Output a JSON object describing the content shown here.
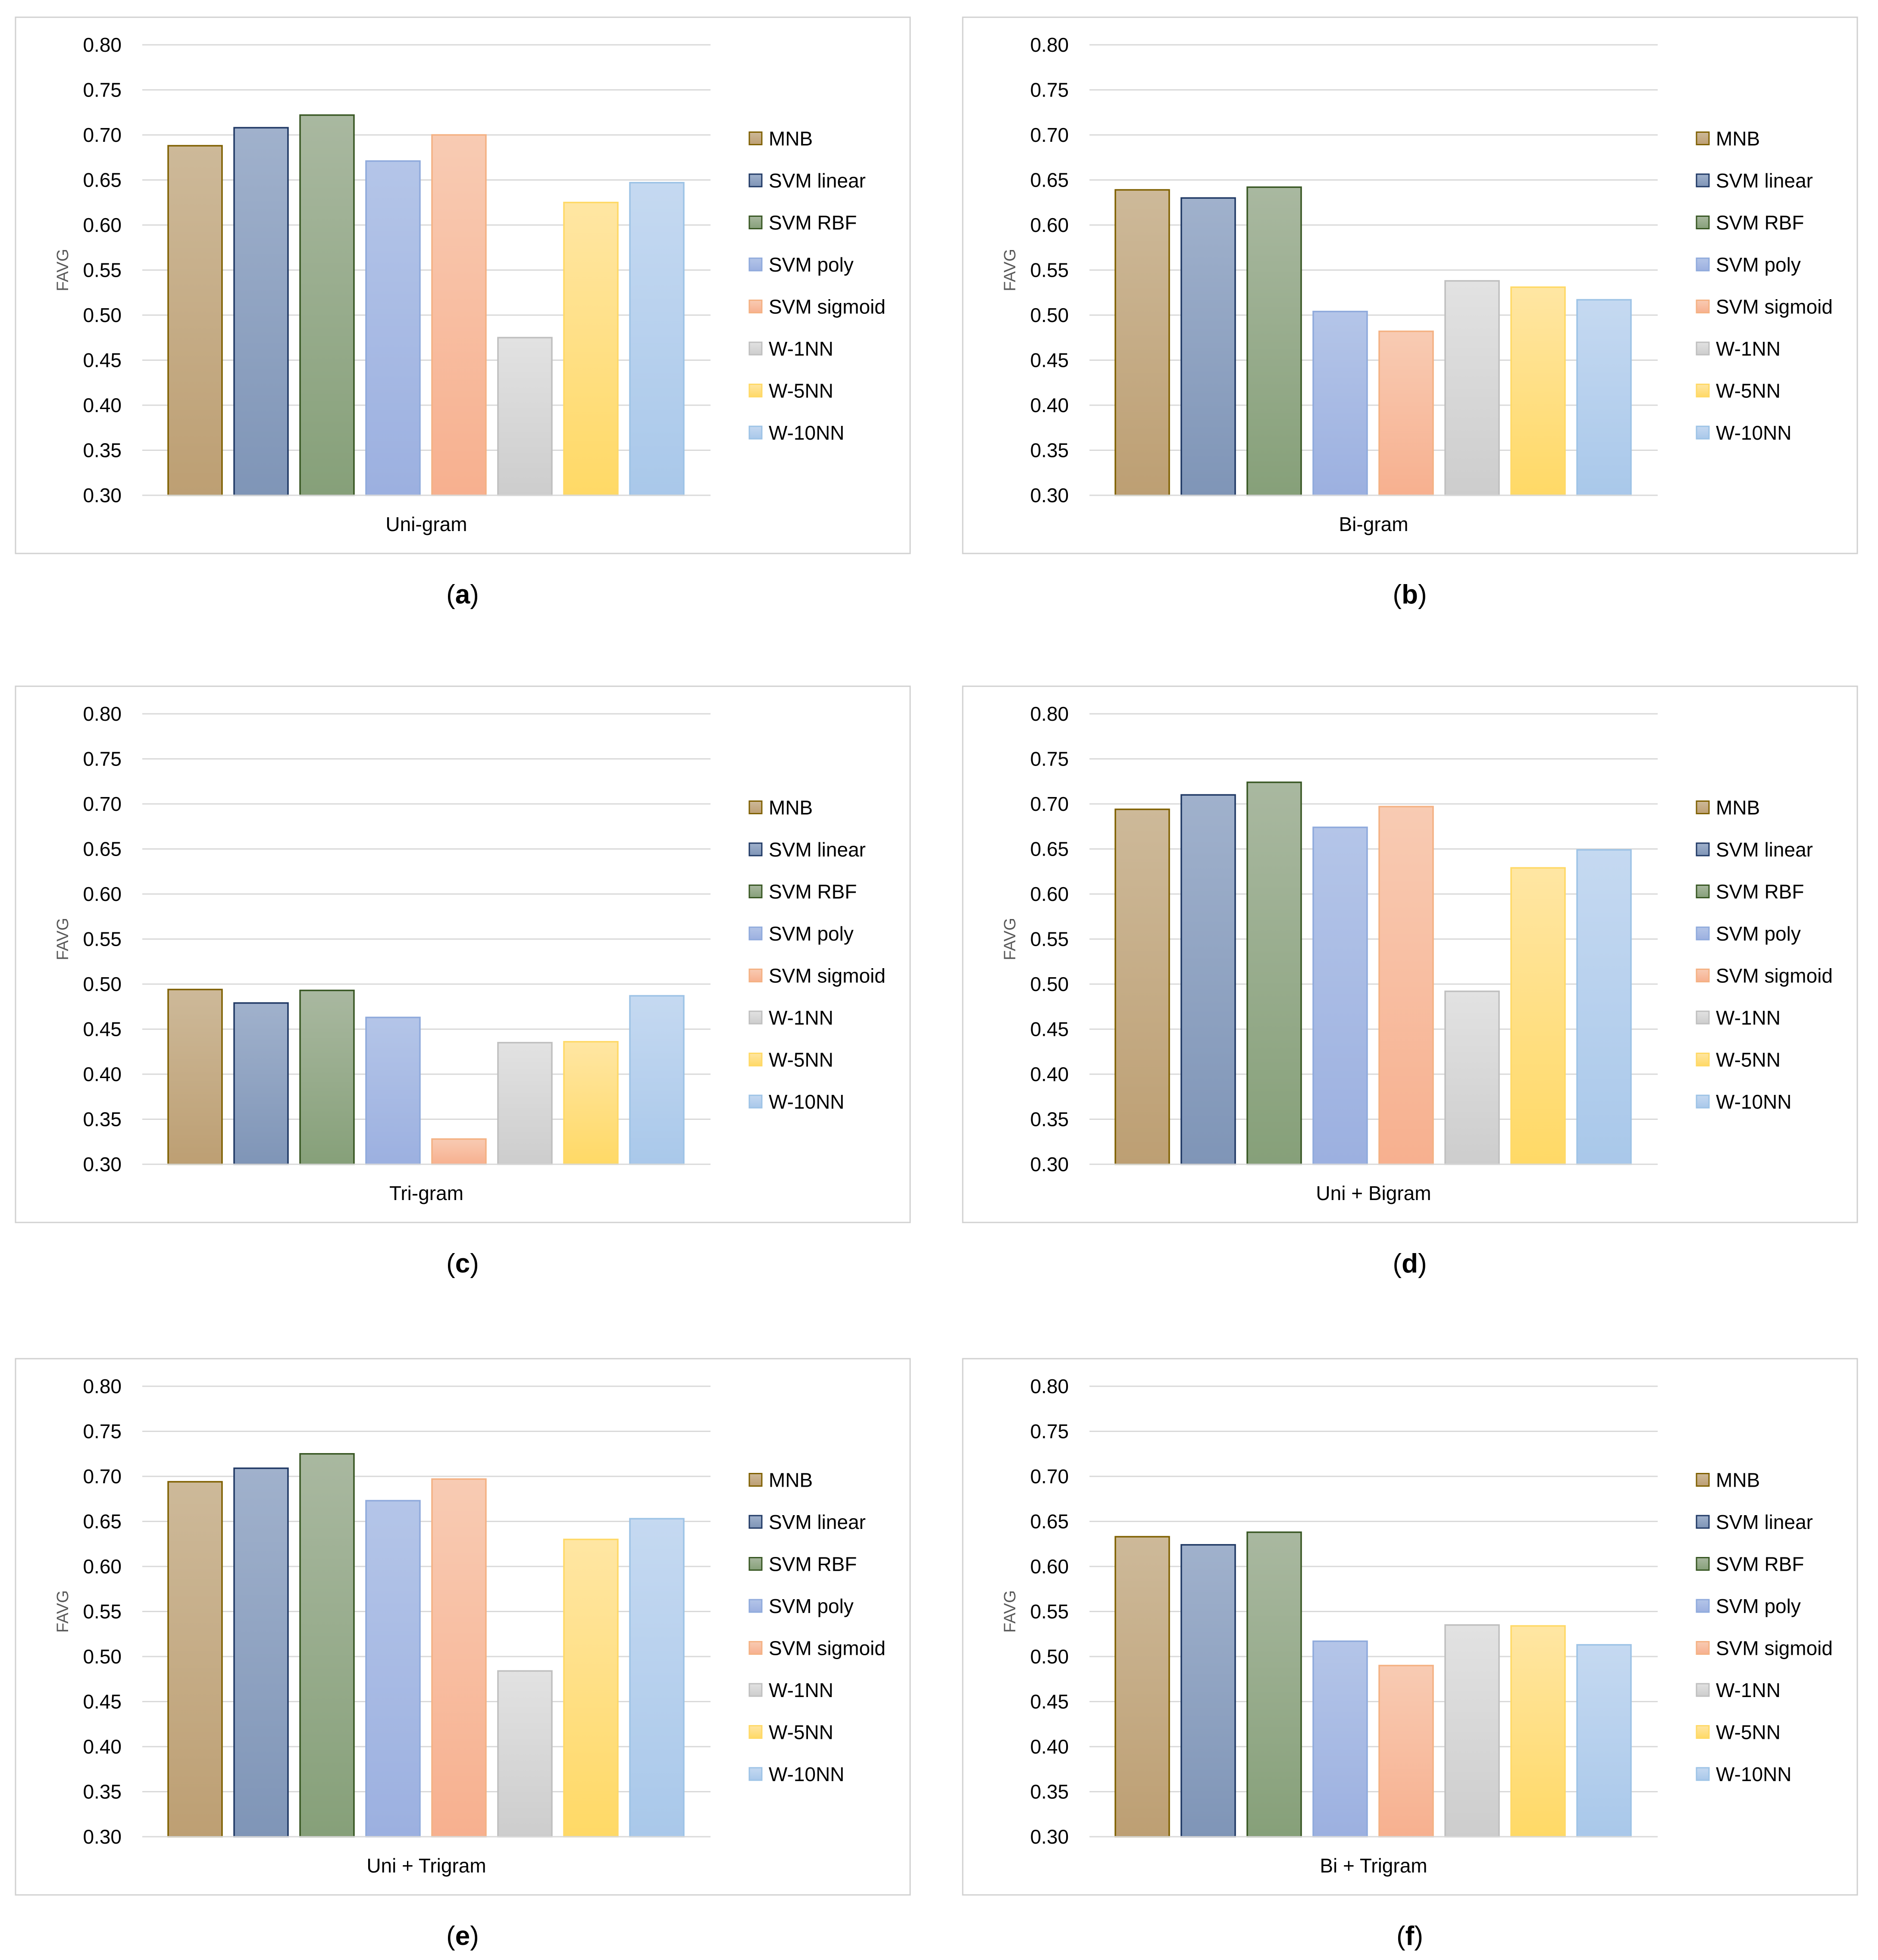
{
  "figure": {
    "legend_position": "right",
    "colors": {
      "frame": "#d0d0d0",
      "gridline": "#d9d9d9",
      "axis_text": "#000000",
      "ylabel_text": "#595959"
    },
    "series_style": [
      {
        "name": "MNB",
        "top": "#cdb999",
        "bottom": "#bd9f73",
        "stroke": "#7f6000"
      },
      {
        "name": "SVM linear",
        "top": "#a0b1cc",
        "bottom": "#7f95b7",
        "stroke": "#1f3864"
      },
      {
        "name": "SVM RBF",
        "top": "#a9b8a0",
        "bottom": "#86a079",
        "stroke": "#385723"
      },
      {
        "name": "SVM poly",
        "top": "#b4c5e8",
        "bottom": "#9cb0e0",
        "stroke": "#8faadc"
      },
      {
        "name": "SVM sigmoid",
        "top": "#f8cbb3",
        "bottom": "#f7b08f",
        "stroke": "#f4b183"
      },
      {
        "name": "W-1NN",
        "top": "#e2e2e2",
        "bottom": "#cdcdcd",
        "stroke": "#bfbfbf"
      },
      {
        "name": "W-5NN",
        "top": "#ffe6a3",
        "bottom": "#ffd966",
        "stroke": "#ffd966"
      },
      {
        "name": "W-10NN",
        "top": "#c5d9f1",
        "bottom": "#a9c8ea",
        "stroke": "#9dc3e6"
      }
    ]
  },
  "chart_data": [
    {
      "type": "bar",
      "panel_label": "a",
      "xlabel": "Uni-gram",
      "ylabel": "FAVG",
      "ylim": [
        0.3,
        0.8
      ],
      "yticks": [
        "0.30",
        "0.35",
        "0.40",
        "0.45",
        "0.50",
        "0.55",
        "0.60",
        "0.65",
        "0.70",
        "0.75",
        "0.80"
      ],
      "grid": true,
      "series": [
        {
          "name": "MNB",
          "value": 0.688
        },
        {
          "name": "SVM linear",
          "value": 0.708
        },
        {
          "name": "SVM RBF",
          "value": 0.722
        },
        {
          "name": "SVM poly",
          "value": 0.671
        },
        {
          "name": "SVM sigmoid",
          "value": 0.7
        },
        {
          "name": "W-1NN",
          "value": 0.475
        },
        {
          "name": "W-5NN",
          "value": 0.625
        },
        {
          "name": "W-10NN",
          "value": 0.647
        }
      ]
    },
    {
      "type": "bar",
      "panel_label": "b",
      "xlabel": "Bi-gram",
      "ylabel": "FAVG",
      "ylim": [
        0.3,
        0.8
      ],
      "yticks": [
        "0.30",
        "0.35",
        "0.40",
        "0.45",
        "0.50",
        "0.55",
        "0.60",
        "0.65",
        "0.70",
        "0.75",
        "0.80"
      ],
      "grid": true,
      "series": [
        {
          "name": "MNB",
          "value": 0.639
        },
        {
          "name": "SVM linear",
          "value": 0.63
        },
        {
          "name": "SVM RBF",
          "value": 0.642
        },
        {
          "name": "SVM poly",
          "value": 0.504
        },
        {
          "name": "SVM sigmoid",
          "value": 0.482
        },
        {
          "name": "W-1NN",
          "value": 0.538
        },
        {
          "name": "W-5NN",
          "value": 0.531
        },
        {
          "name": "W-10NN",
          "value": 0.517
        }
      ]
    },
    {
      "type": "bar",
      "panel_label": "c",
      "xlabel": "Tri-gram",
      "ylabel": "FAVG",
      "ylim": [
        0.3,
        0.8
      ],
      "yticks": [
        "0.30",
        "0.35",
        "0.40",
        "0.45",
        "0.50",
        "0.55",
        "0.60",
        "0.65",
        "0.70",
        "0.75",
        "0.80"
      ],
      "grid": true,
      "series": [
        {
          "name": "MNB",
          "value": 0.494
        },
        {
          "name": "SVM linear",
          "value": 0.479
        },
        {
          "name": "SVM RBF",
          "value": 0.493
        },
        {
          "name": "SVM poly",
          "value": 0.463
        },
        {
          "name": "SVM sigmoid",
          "value": 0.328
        },
        {
          "name": "W-1NN",
          "value": 0.435
        },
        {
          "name": "W-5NN",
          "value": 0.436
        },
        {
          "name": "W-10NN",
          "value": 0.487
        }
      ]
    },
    {
      "type": "bar",
      "panel_label": "d",
      "xlabel": "Uni + Bigram",
      "ylabel": "FAVG",
      "ylim": [
        0.3,
        0.8
      ],
      "yticks": [
        "0.30",
        "0.35",
        "0.40",
        "0.45",
        "0.50",
        "0.55",
        "0.60",
        "0.65",
        "0.70",
        "0.75",
        "0.80"
      ],
      "grid": true,
      "series": [
        {
          "name": "MNB",
          "value": 0.694
        },
        {
          "name": "SVM linear",
          "value": 0.71
        },
        {
          "name": "SVM RBF",
          "value": 0.724
        },
        {
          "name": "SVM poly",
          "value": 0.674
        },
        {
          "name": "SVM sigmoid",
          "value": 0.697
        },
        {
          "name": "W-1NN",
          "value": 0.492
        },
        {
          "name": "W-5NN",
          "value": 0.629
        },
        {
          "name": "W-10NN",
          "value": 0.649
        }
      ]
    },
    {
      "type": "bar",
      "panel_label": "e",
      "xlabel": "Uni + Trigram",
      "ylabel": "FAVG",
      "ylim": [
        0.3,
        0.8
      ],
      "yticks": [
        "0.30",
        "0.35",
        "0.40",
        "0.45",
        "0.50",
        "0.55",
        "0.60",
        "0.65",
        "0.70",
        "0.75",
        "0.80"
      ],
      "grid": true,
      "series": [
        {
          "name": "MNB",
          "value": 0.694
        },
        {
          "name": "SVM linear",
          "value": 0.709
        },
        {
          "name": "SVM RBF",
          "value": 0.725
        },
        {
          "name": "SVM poly",
          "value": 0.673
        },
        {
          "name": "SVM sigmoid",
          "value": 0.697
        },
        {
          "name": "W-1NN",
          "value": 0.484
        },
        {
          "name": "W-5NN",
          "value": 0.63
        },
        {
          "name": "W-10NN",
          "value": 0.653
        }
      ]
    },
    {
      "type": "bar",
      "panel_label": "f",
      "xlabel": "Bi + Trigram",
      "ylabel": "FAVG",
      "ylim": [
        0.3,
        0.8
      ],
      "yticks": [
        "0.30",
        "0.35",
        "0.40",
        "0.45",
        "0.50",
        "0.55",
        "0.60",
        "0.65",
        "0.70",
        "0.75",
        "0.80"
      ],
      "grid": true,
      "series": [
        {
          "name": "MNB",
          "value": 0.633
        },
        {
          "name": "SVM linear",
          "value": 0.624
        },
        {
          "name": "SVM RBF",
          "value": 0.638
        },
        {
          "name": "SVM poly",
          "value": 0.517
        },
        {
          "name": "SVM sigmoid",
          "value": 0.49
        },
        {
          "name": "W-1NN",
          "value": 0.535
        },
        {
          "name": "W-5NN",
          "value": 0.534
        },
        {
          "name": "W-10NN",
          "value": 0.513
        }
      ]
    }
  ]
}
